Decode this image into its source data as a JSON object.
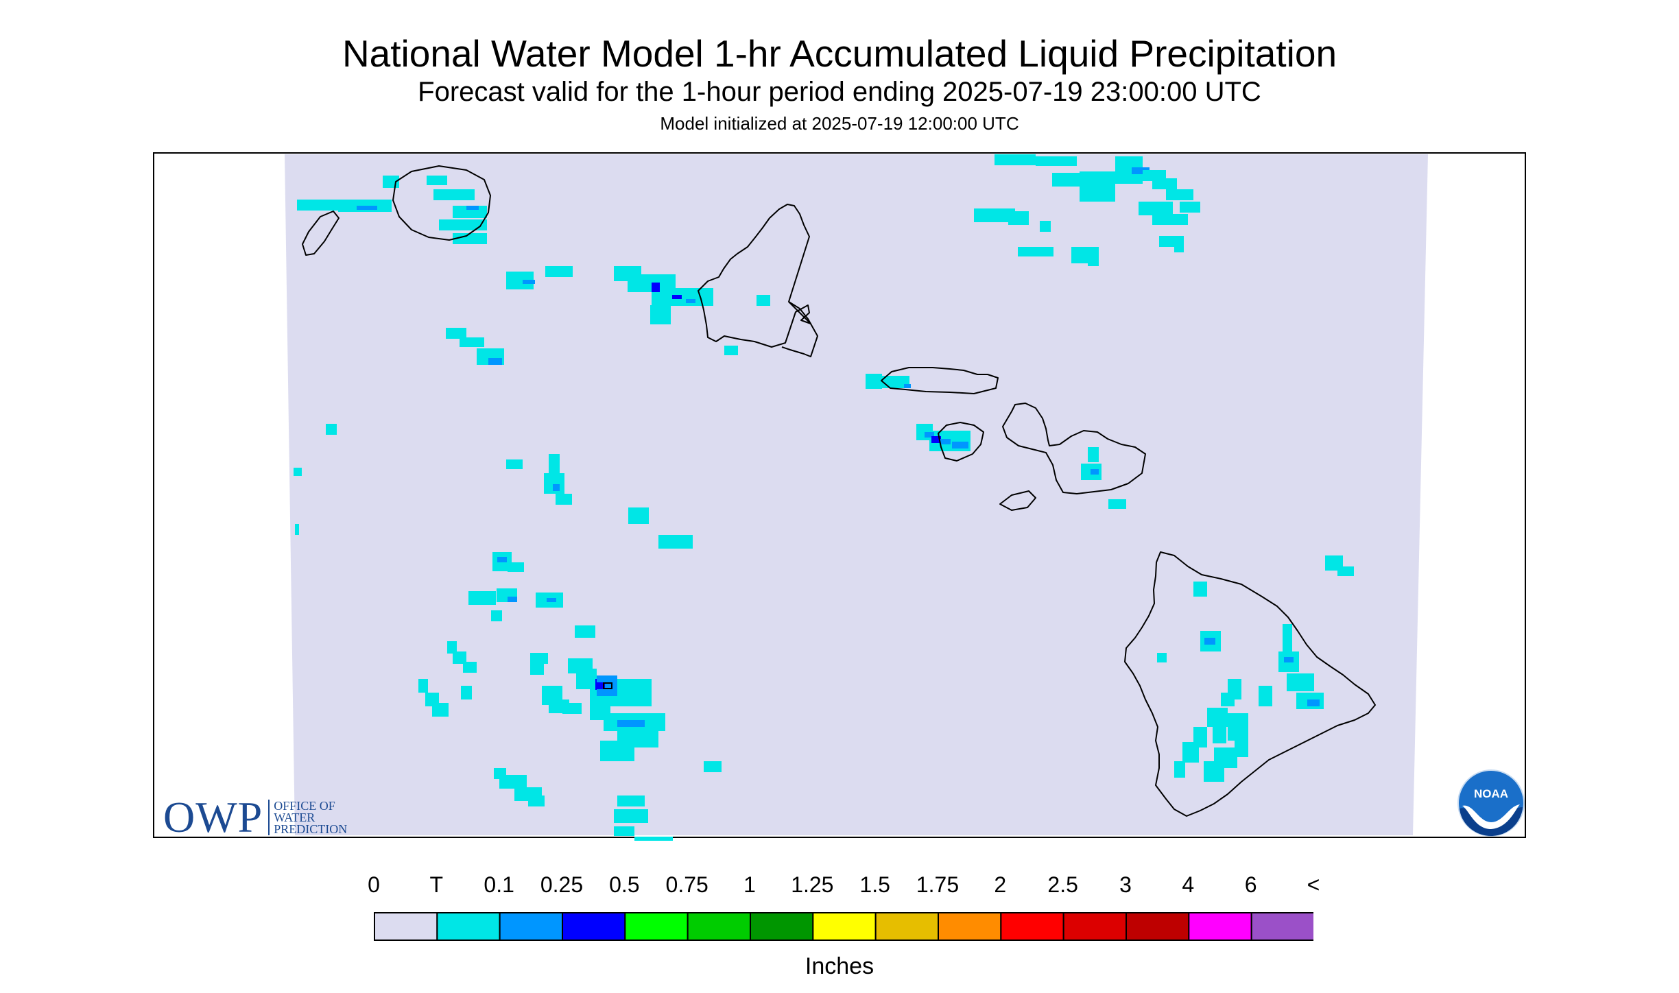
{
  "header": {
    "title": "National Water Model 1-hr Accumulated Liquid Precipitation",
    "subtitle": "Forecast valid for the 1-hour period ending 2025-07-19 23:00:00 UTC",
    "init": "Model initialized at 2025-07-19 12:00:00 UTC"
  },
  "map": {
    "background_color": "#dcdcf0",
    "coastline_color": "#000000",
    "islands": [
      "Niihau",
      "Kauai",
      "Oahu",
      "Molokai",
      "Lanai",
      "Maui",
      "Kahoolawe",
      "Hawaii"
    ]
  },
  "legend": {
    "labels": [
      "0",
      "T",
      "0.1",
      "0.25",
      "0.5",
      "0.75",
      "1",
      "1.25",
      "1.5",
      "1.75",
      "2",
      "2.5",
      "3",
      "4",
      "6",
      "<"
    ],
    "colors": [
      "#dcdcf0",
      "#00e6e6",
      "#0096ff",
      "#0000ff",
      "#00ff00",
      "#00cc00",
      "#009600",
      "#ffff00",
      "#e6be00",
      "#ff8c00",
      "#ff0000",
      "#dc0000",
      "#be0000",
      "#ff00ff",
      "#9b50c8"
    ],
    "units": "Inches"
  },
  "logos": {
    "owp": "OWP",
    "owp_name": [
      "OFFICE OF",
      "WATER",
      "PREDICTION"
    ],
    "noaa": "NOAA"
  }
}
